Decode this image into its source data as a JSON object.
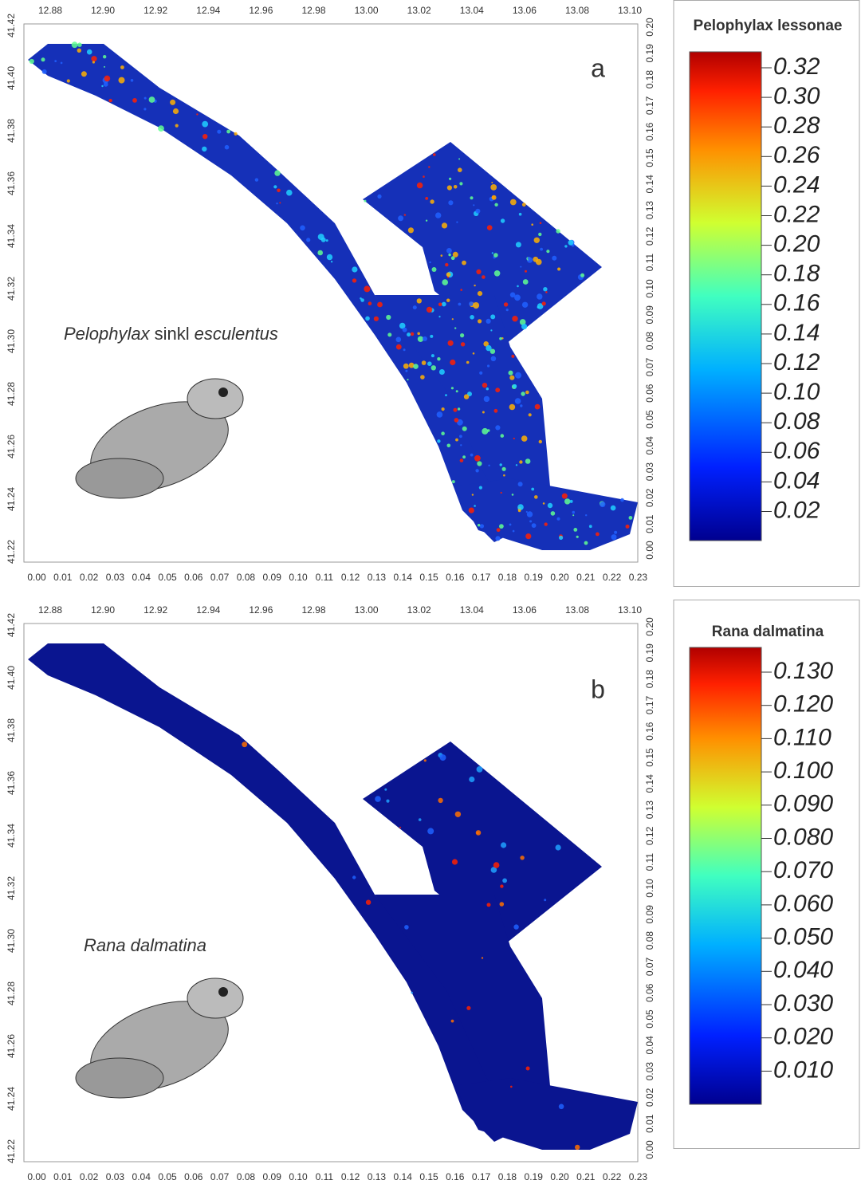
{
  "panels": [
    {
      "label": "a",
      "species": {
        "genus": "Pelophylax",
        "rank": "sinkl",
        "epithet": "esculentus"
      },
      "legend": {
        "title": "Pelophylax lessonae",
        "ticks": [
          "0.32",
          "0.30",
          "0.28",
          "0.26",
          "0.24",
          "0.22",
          "0.20",
          "0.18",
          "0.16",
          "0.14",
          "0.12",
          "0.10",
          "0.08",
          "0.06",
          "0.04",
          "0.02"
        ]
      },
      "axes": {
        "top": [
          "12.88",
          "12.90",
          "12.92",
          "12.94",
          "12.96",
          "12.98",
          "13.00",
          "13.02",
          "13.04",
          "13.06",
          "13.08",
          "13.10"
        ],
        "left": [
          "41.42",
          "41.40",
          "41.38",
          "41.36",
          "41.34",
          "41.32",
          "41.30",
          "41.28",
          "41.26",
          "41.24",
          "41.22"
        ],
        "bottom": [
          "0.00",
          "0.01",
          "0.02",
          "0.03",
          "0.04",
          "0.05",
          "0.06",
          "0.07",
          "0.08",
          "0.09",
          "0.10",
          "0.11",
          "0.12",
          "0.13",
          "0.14",
          "0.15",
          "0.16",
          "0.17",
          "0.18",
          "0.19",
          "0.20",
          "0.21",
          "0.22",
          "0.23"
        ],
        "right": [
          "0.00",
          "0.01",
          "0.02",
          "0.03",
          "0.04",
          "0.05",
          "0.06",
          "0.07",
          "0.08",
          "0.09",
          "0.10",
          "0.11",
          "0.12",
          "0.13",
          "0.14",
          "0.15",
          "0.16",
          "0.17",
          "0.18",
          "0.19",
          "0.20"
        ]
      }
    },
    {
      "label": "b",
      "species": {
        "genus": "Rana",
        "epithet": "dalmatina"
      },
      "legend": {
        "title": "Rana dalmatina",
        "ticks": [
          "0.130",
          "0.120",
          "0.110",
          "0.100",
          "0.090",
          "0.080",
          "0.070",
          "0.060",
          "0.050",
          "0.040",
          "0.030",
          "0.020",
          "0.010"
        ]
      },
      "axes": {
        "top": [
          "12.88",
          "12.90",
          "12.92",
          "12.94",
          "12.96",
          "12.98",
          "13.00",
          "13.02",
          "13.04",
          "13.06",
          "13.08",
          "13.10"
        ],
        "left": [
          "41.42",
          "41.40",
          "41.38",
          "41.36",
          "41.34",
          "41.32",
          "41.30",
          "41.28",
          "41.26",
          "41.24",
          "41.22"
        ],
        "bottom": [
          "0.00",
          "0.01",
          "0.02",
          "0.03",
          "0.04",
          "0.05",
          "0.06",
          "0.07",
          "0.08",
          "0.09",
          "0.10",
          "0.11",
          "0.12",
          "0.13",
          "0.14",
          "0.15",
          "0.16",
          "0.17",
          "0.18",
          "0.19",
          "0.20",
          "0.21",
          "0.22",
          "0.23"
        ],
        "right": [
          "0.00",
          "0.01",
          "0.02",
          "0.03",
          "0.04",
          "0.05",
          "0.06",
          "0.07",
          "0.08",
          "0.09",
          "0.10",
          "0.11",
          "0.12",
          "0.13",
          "0.14",
          "0.15",
          "0.16",
          "0.17",
          "0.18",
          "0.19",
          "0.20"
        ]
      }
    }
  ]
}
